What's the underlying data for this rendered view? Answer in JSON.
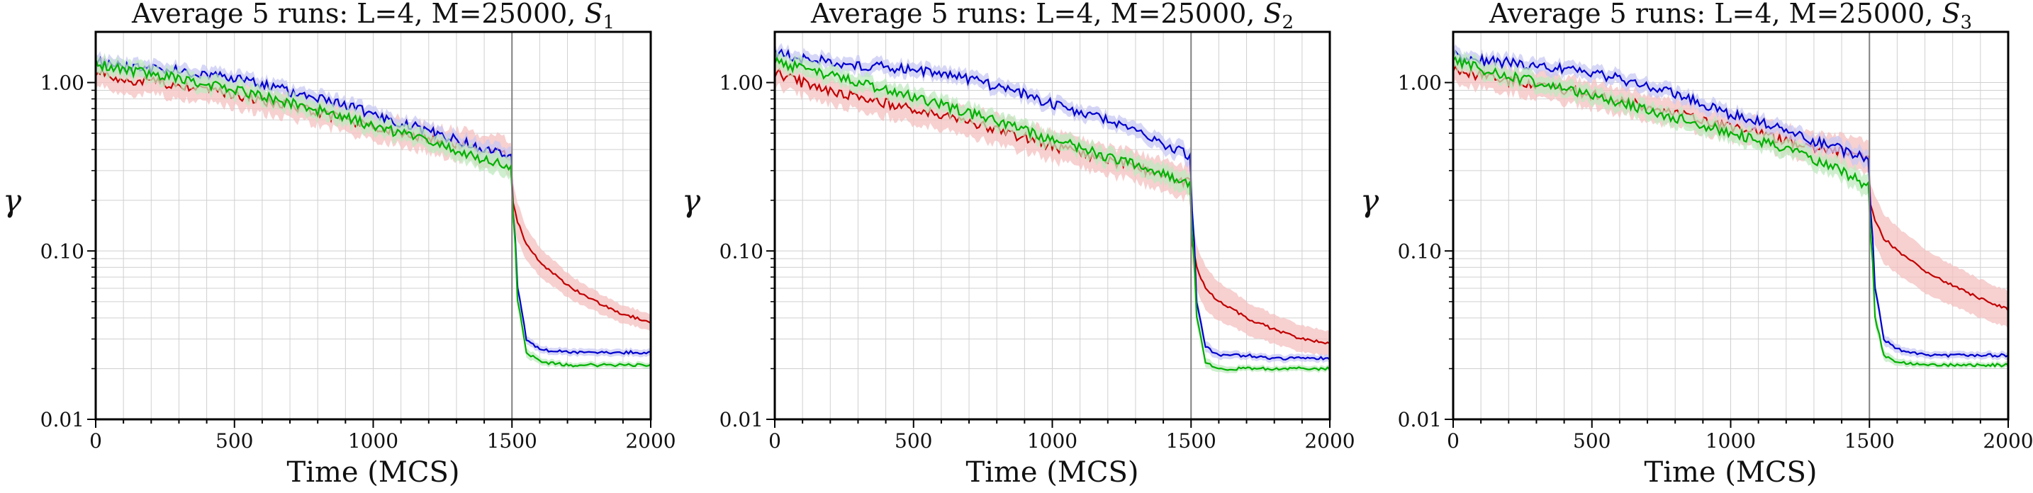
{
  "chart_data": [
    {
      "type": "line",
      "title": "Average 5 runs: L=4, M=25000, ",
      "title_symbol": "S",
      "title_subscript": "1",
      "xlabel": "Time (MCS)",
      "ylabel": "γ",
      "yscale": "log",
      "xlim": [
        0,
        2000
      ],
      "ylim": [
        0.01,
        2
      ],
      "xticks": [
        "0",
        "500",
        "1000",
        "1500",
        "2000"
      ],
      "yticks": [
        "0.01",
        "0.10",
        "1.00"
      ],
      "grid": true,
      "vline_x": 1500,
      "series": [
        {
          "color": "#c00000",
          "fill": "#f4c0c0",
          "x": [
            0,
            100,
            250,
            500,
            750,
            1000,
            1250,
            1450,
            1499,
            1500,
            1520,
            1550,
            1600,
            1700,
            1800,
            1900,
            2000
          ],
          "y": [
            1.15,
            1.05,
            1.0,
            0.85,
            0.7,
            0.55,
            0.45,
            0.38,
            0.36,
            0.2,
            0.15,
            0.11,
            0.085,
            0.062,
            0.05,
            0.042,
            0.038
          ],
          "band": [
            0.2,
            0.2,
            0.2,
            0.2,
            0.2,
            0.2,
            0.22,
            0.25,
            0.25,
            0.3,
            0.3,
            0.25,
            0.22,
            0.18,
            0.15,
            0.13,
            0.12
          ]
        },
        {
          "color": "#0000cc",
          "fill": "#c8c8f4",
          "x": [
            0,
            100,
            250,
            500,
            750,
            1000,
            1250,
            1450,
            1499,
            1500,
            1520,
            1550,
            1600,
            1700,
            1800,
            1900,
            2000
          ],
          "y": [
            1.35,
            1.25,
            1.2,
            1.05,
            0.85,
            0.65,
            0.48,
            0.38,
            0.36,
            0.2,
            0.06,
            0.03,
            0.026,
            0.025,
            0.025,
            0.025,
            0.025
          ],
          "band": [
            0.1,
            0.1,
            0.1,
            0.1,
            0.1,
            0.1,
            0.1,
            0.12,
            0.12,
            0.15,
            0.1,
            0.06,
            0.05,
            0.05,
            0.05,
            0.05,
            0.05
          ]
        },
        {
          "color": "#00b000",
          "fill": "#bfeabf",
          "x": [
            0,
            100,
            250,
            500,
            750,
            1000,
            1250,
            1450,
            1499,
            1500,
            1520,
            1550,
            1600,
            1700,
            1800,
            1900,
            2000
          ],
          "y": [
            1.3,
            1.2,
            1.1,
            0.9,
            0.72,
            0.55,
            0.42,
            0.33,
            0.3,
            0.2,
            0.05,
            0.025,
            0.022,
            0.021,
            0.021,
            0.021,
            0.021
          ],
          "band": [
            0.12,
            0.12,
            0.12,
            0.12,
            0.12,
            0.12,
            0.12,
            0.15,
            0.15,
            0.15,
            0.12,
            0.07,
            0.05,
            0.04,
            0.04,
            0.04,
            0.04
          ]
        }
      ]
    },
    {
      "type": "line",
      "title": "Average 5 runs: L=4, M=25000, ",
      "title_symbol": "S",
      "title_subscript": "2",
      "xlabel": "Time (MCS)",
      "ylabel": "γ",
      "yscale": "log",
      "xlim": [
        0,
        2000
      ],
      "ylim": [
        0.01,
        2
      ],
      "xticks": [
        "0",
        "500",
        "1000",
        "1500",
        "2000"
      ],
      "yticks": [
        "0.01",
        "0.10",
        "1.00"
      ],
      "grid": true,
      "vline_x": 1500,
      "series": [
        {
          "color": "#c00000",
          "fill": "#f4c0c0",
          "x": [
            0,
            100,
            250,
            500,
            750,
            1000,
            1250,
            1450,
            1499,
            1500,
            1520,
            1550,
            1600,
            1700,
            1800,
            1900,
            2000
          ],
          "y": [
            1.15,
            1.0,
            0.85,
            0.7,
            0.55,
            0.42,
            0.33,
            0.27,
            0.25,
            0.12,
            0.08,
            0.06,
            0.05,
            0.04,
            0.034,
            0.03,
            0.028
          ],
          "band": [
            0.2,
            0.2,
            0.2,
            0.22,
            0.22,
            0.22,
            0.22,
            0.25,
            0.25,
            0.3,
            0.35,
            0.35,
            0.3,
            0.25,
            0.22,
            0.2,
            0.18
          ]
        },
        {
          "color": "#0000cc",
          "fill": "#c8c8f4",
          "x": [
            0,
            100,
            250,
            500,
            750,
            1000,
            1250,
            1450,
            1499,
            1500,
            1520,
            1550,
            1600,
            1700,
            1800,
            1900,
            2000
          ],
          "y": [
            1.5,
            1.38,
            1.3,
            1.2,
            1.0,
            0.75,
            0.55,
            0.4,
            0.36,
            0.2,
            0.05,
            0.027,
            0.024,
            0.024,
            0.023,
            0.023,
            0.023
          ],
          "band": [
            0.1,
            0.1,
            0.1,
            0.1,
            0.1,
            0.1,
            0.1,
            0.12,
            0.12,
            0.15,
            0.12,
            0.08,
            0.06,
            0.05,
            0.05,
            0.05,
            0.05
          ]
        },
        {
          "color": "#00b000",
          "fill": "#bfeabf",
          "x": [
            0,
            100,
            250,
            500,
            750,
            1000,
            1250,
            1450,
            1499,
            1500,
            1520,
            1550,
            1600,
            1700,
            1800,
            1900,
            2000
          ],
          "y": [
            1.35,
            1.2,
            1.05,
            0.82,
            0.62,
            0.46,
            0.34,
            0.27,
            0.25,
            0.15,
            0.04,
            0.022,
            0.02,
            0.02,
            0.02,
            0.02,
            0.02
          ],
          "band": [
            0.12,
            0.12,
            0.12,
            0.12,
            0.12,
            0.12,
            0.12,
            0.15,
            0.15,
            0.15,
            0.12,
            0.07,
            0.05,
            0.04,
            0.04,
            0.04,
            0.04
          ]
        }
      ]
    },
    {
      "type": "line",
      "title": "Average 5 runs: L=4, M=25000, ",
      "title_symbol": "S",
      "title_subscript": "3",
      "xlabel": "Time (MCS)",
      "ylabel": "γ",
      "yscale": "log",
      "xlim": [
        0,
        2000
      ],
      "ylim": [
        0.01,
        2
      ],
      "xticks": [
        "0",
        "500",
        "1000",
        "1500",
        "2000"
      ],
      "yticks": [
        "0.01",
        "0.10",
        "1.00"
      ],
      "grid": true,
      "vline_x": 1500,
      "series": [
        {
          "color": "#c00000",
          "fill": "#f4c0c0",
          "x": [
            0,
            100,
            250,
            500,
            750,
            1000,
            1250,
            1450,
            1499,
            1500,
            1520,
            1550,
            1600,
            1700,
            1800,
            1900,
            2000
          ],
          "y": [
            1.2,
            1.1,
            1.0,
            0.85,
            0.68,
            0.55,
            0.43,
            0.37,
            0.36,
            0.2,
            0.15,
            0.12,
            0.1,
            0.075,
            0.062,
            0.052,
            0.045
          ],
          "band": [
            0.2,
            0.2,
            0.2,
            0.2,
            0.2,
            0.2,
            0.22,
            0.25,
            0.25,
            0.3,
            0.4,
            0.4,
            0.38,
            0.35,
            0.32,
            0.3,
            0.28
          ]
        },
        {
          "color": "#0000cc",
          "fill": "#c8c8f4",
          "x": [
            0,
            100,
            250,
            500,
            750,
            1000,
            1250,
            1450,
            1499,
            1500,
            1520,
            1550,
            1600,
            1700,
            1800,
            1900,
            2000
          ],
          "y": [
            1.45,
            1.35,
            1.3,
            1.15,
            0.9,
            0.65,
            0.48,
            0.37,
            0.35,
            0.2,
            0.06,
            0.03,
            0.026,
            0.024,
            0.024,
            0.024,
            0.024
          ],
          "band": [
            0.1,
            0.1,
            0.1,
            0.1,
            0.1,
            0.1,
            0.1,
            0.12,
            0.12,
            0.15,
            0.12,
            0.08,
            0.06,
            0.05,
            0.05,
            0.05,
            0.05
          ]
        },
        {
          "color": "#00b000",
          "fill": "#bfeabf",
          "x": [
            0,
            100,
            250,
            500,
            750,
            1000,
            1250,
            1450,
            1499,
            1500,
            1520,
            1550,
            1600,
            1700,
            1800,
            1900,
            2000
          ],
          "y": [
            1.35,
            1.2,
            1.05,
            0.85,
            0.65,
            0.5,
            0.38,
            0.27,
            0.24,
            0.15,
            0.04,
            0.024,
            0.022,
            0.021,
            0.021,
            0.021,
            0.021
          ],
          "band": [
            0.12,
            0.12,
            0.12,
            0.12,
            0.12,
            0.12,
            0.12,
            0.15,
            0.15,
            0.15,
            0.12,
            0.07,
            0.05,
            0.04,
            0.04,
            0.04,
            0.04
          ]
        }
      ]
    }
  ]
}
